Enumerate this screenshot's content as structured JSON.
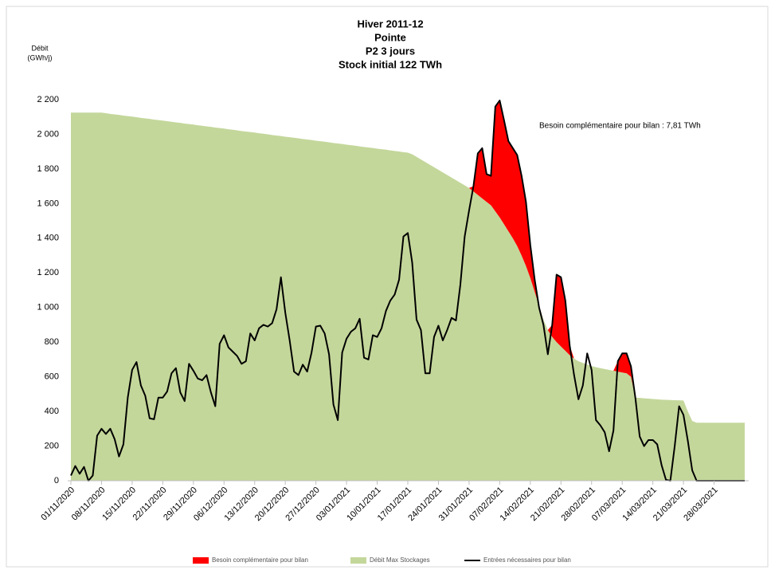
{
  "chart_data": {
    "type": "area",
    "title": [
      "Hiver 2011-12",
      "Pointe",
      "P2 3 jours",
      "Stock initial 122 TWh"
    ],
    "y_label": [
      "Débit",
      "(GWh/j)"
    ],
    "annotation": "Besoin complémentaire pour bilan :  7,81 TWh",
    "ylim": [
      0,
      2200
    ],
    "yticks": [
      0,
      200,
      400,
      600,
      800,
      {
        "value": 1000,
        "label": "1 000"
      },
      {
        "value": 1200,
        "label": "1 200"
      },
      {
        "value": 1400,
        "label": "1 400"
      },
      {
        "value": 1600,
        "label": "1 600"
      },
      {
        "value": 1800,
        "label": "1 800"
      },
      {
        "value": 2000,
        "label": "2 000"
      },
      {
        "value": 2200,
        "label": "2 200"
      }
    ],
    "categories": [
      "01/11/2020",
      null,
      null,
      null,
      null,
      null,
      null,
      "08/11/2020",
      null,
      null,
      null,
      null,
      null,
      null,
      "15/11/2020",
      null,
      null,
      null,
      null,
      null,
      null,
      "22/11/2020",
      null,
      null,
      null,
      null,
      null,
      null,
      "29/11/2020",
      null,
      null,
      null,
      null,
      null,
      null,
      "06/12/2020",
      null,
      null,
      null,
      null,
      null,
      null,
      "13/12/2020",
      null,
      null,
      null,
      null,
      null,
      null,
      "20/12/2020",
      null,
      null,
      null,
      null,
      null,
      null,
      "27/12/2020",
      null,
      null,
      null,
      null,
      null,
      null,
      "03/01/2021",
      null,
      null,
      null,
      null,
      null,
      null,
      "10/01/2021",
      null,
      null,
      null,
      null,
      null,
      null,
      "17/01/2021",
      null,
      null,
      null,
      null,
      null,
      null,
      "24/01/2021",
      null,
      null,
      null,
      null,
      null,
      null,
      "31/01/2021",
      null,
      null,
      null,
      null,
      null,
      null,
      "07/02/2021",
      null,
      null,
      null,
      null,
      null,
      null,
      "14/02/2021",
      null,
      null,
      null,
      null,
      null,
      null,
      "21/02/2021",
      null,
      null,
      null,
      null,
      null,
      null,
      "28/02/2021",
      null,
      null,
      null,
      null,
      null,
      null,
      "07/03/2021",
      null,
      null,
      null,
      null,
      null,
      null,
      "14/03/2021",
      null,
      null,
      null,
      null,
      null,
      null,
      "21/03/2021",
      null,
      null,
      null,
      null,
      null,
      null,
      "28/03/2021",
      null,
      null,
      null,
      null,
      null,
      null,
      null
    ],
    "series": [
      {
        "name": "Besoin complémentaire pour bilan",
        "color": "#ff0000",
        "type": "area",
        "stacked": true,
        "values": [
          0,
          0,
          0,
          0,
          0,
          0,
          0,
          0,
          0,
          0,
          0,
          0,
          0,
          0,
          0,
          0,
          0,
          0,
          0,
          0,
          0,
          0,
          0,
          0,
          0,
          0,
          0,
          0,
          0,
          0,
          0,
          0,
          0,
          0,
          0,
          0,
          0,
          0,
          0,
          0,
          0,
          0,
          0,
          0,
          0,
          0,
          0,
          0,
          0,
          0,
          0,
          0,
          0,
          0,
          0,
          0,
          0,
          0,
          0,
          0,
          0,
          0,
          0,
          0,
          0,
          0,
          0,
          0,
          0,
          0,
          0,
          0,
          0,
          0,
          0,
          0,
          0,
          0,
          0,
          0,
          0,
          0,
          0,
          0,
          0,
          0,
          0,
          0,
          0,
          0,
          0,
          0,
          30,
          240,
          290,
          160,
          170,
          605,
          675,
          600,
          520,
          520,
          525,
          460,
          370,
          190,
          70,
          0,
          0,
          0,
          70,
          390,
          400,
          290,
          55,
          0,
          0,
          0,
          0,
          0,
          0,
          0,
          0,
          0,
          0,
          60,
          110,
          115,
          60,
          0,
          0,
          0,
          0,
          0,
          0,
          0,
          0,
          0,
          0,
          0,
          0,
          0,
          0,
          0,
          0,
          0,
          0,
          0,
          0,
          0,
          0,
          0,
          0,
          0,
          0
        ]
      },
      {
        "name": "Débit Max Stockages",
        "color": "#c4d79b",
        "type": "area",
        "values": [
          2125,
          2125,
          2125,
          2125,
          2125,
          2125,
          2125,
          2125,
          2122,
          2118,
          2115,
          2112,
          2108,
          2105,
          2102,
          2099,
          2095,
          2092,
          2089,
          2085,
          2082,
          2079,
          2076,
          2072,
          2069,
          2066,
          2062,
          2059,
          2056,
          2052,
          2049,
          2046,
          2043,
          2039,
          2036,
          2033,
          2029,
          2026,
          2023,
          2019,
          2016,
          2013,
          2010,
          2006,
          2003,
          2000,
          1996,
          1993,
          1990,
          1986,
          1983,
          1980,
          1977,
          1973,
          1970,
          1967,
          1963,
          1960,
          1957,
          1954,
          1950,
          1947,
          1944,
          1940,
          1937,
          1934,
          1930,
          1927,
          1924,
          1921,
          1917,
          1914,
          1911,
          1907,
          1904,
          1901,
          1897,
          1894,
          1885,
          1870,
          1855,
          1840,
          1825,
          1810,
          1795,
          1780,
          1765,
          1750,
          1735,
          1720,
          1705,
          1690,
          1670,
          1650,
          1630,
          1610,
          1590,
          1555,
          1520,
          1480,
          1440,
          1400,
          1355,
          1300,
          1240,
          1170,
          1090,
          1010,
          930,
          870,
          830,
          800,
          775,
          750,
          725,
          705,
          690,
          680,
          670,
          662,
          655,
          650,
          645,
          640,
          635,
          630,
          625,
          620,
          600,
          480,
          478,
          476,
          474,
          472,
          470,
          468,
          467,
          466,
          465,
          464,
          463,
          400,
          345,
          335,
          335,
          335,
          335,
          335,
          335,
          335,
          335,
          335,
          335,
          335,
          335
        ]
      },
      {
        "name": "Entrées nécessaires pour bilan",
        "color": "#000000",
        "type": "line",
        "values": [
          30,
          85,
          40,
          80,
          0,
          30,
          260,
          300,
          270,
          300,
          240,
          140,
          210,
          480,
          640,
          685,
          550,
          490,
          360,
          355,
          480,
          480,
          515,
          620,
          650,
          510,
          460,
          675,
          635,
          590,
          580,
          610,
          510,
          430,
          790,
          840,
          770,
          745,
          720,
          675,
          690,
          850,
          810,
          880,
          900,
          890,
          910,
          990,
          1175,
          970,
          810,
          630,
          610,
          670,
          630,
          740,
          890,
          895,
          850,
          730,
          440,
          350,
          740,
          820,
          860,
          880,
          935,
          710,
          700,
          840,
          830,
          880,
          980,
          1040,
          1075,
          1160,
          1410,
          1430,
          1260,
          930,
          870,
          620,
          620,
          830,
          895,
          810,
          870,
          940,
          925,
          1130,
          1410,
          1560,
          1700,
          1890,
          1920,
          1770,
          1760,
          2160,
          2195,
          2080,
          1960,
          1920,
          1880,
          1760,
          1610,
          1360,
          1160,
          1000,
          900,
          730,
          900,
          1190,
          1175,
          1040,
          780,
          610,
          470,
          550,
          735,
          640,
          350,
          320,
          280,
          170,
          290,
          690,
          735,
          735,
          660,
          480,
          255,
          200,
          235,
          235,
          210,
          90,
          5,
          0,
          200,
          430,
          380,
          230,
          60,
          0,
          0,
          0,
          0,
          0,
          0,
          0,
          0,
          0,
          0,
          0,
          0
        ]
      }
    ]
  }
}
